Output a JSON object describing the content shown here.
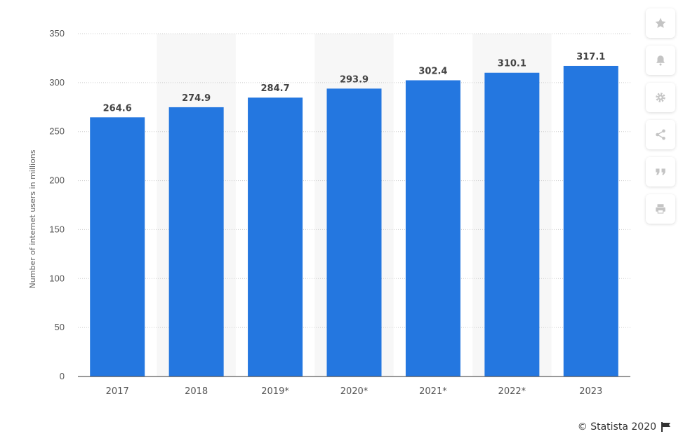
{
  "chart_data": {
    "type": "bar",
    "categories": [
      "2017",
      "2018",
      "2019*",
      "2020*",
      "2021*",
      "2022*",
      "2023"
    ],
    "values": [
      264.6,
      274.9,
      284.7,
      293.9,
      302.4,
      310.1,
      317.1
    ],
    "value_labels": [
      "264.6",
      "274.9",
      "284.7",
      "293.9",
      "302.4",
      "310.1",
      "317.1"
    ],
    "yticks": [
      "0",
      "50",
      "100",
      "150",
      "200",
      "250",
      "300",
      "350"
    ],
    "ytick_values": [
      0,
      50,
      100,
      150,
      200,
      250,
      300,
      350
    ],
    "ylim": [
      0,
      350
    ],
    "xlabel": "",
    "ylabel": "Number of internet users in millions",
    "title": "",
    "grid": true,
    "bar_color": "#2477e0",
    "alt_band_color": "#f7f7f7"
  },
  "toolbar": {
    "icons": [
      "star-icon",
      "bell-icon",
      "gear-icon",
      "share-icon",
      "quote-icon",
      "print-icon"
    ]
  },
  "footer": {
    "credit": "© Statista 2020"
  }
}
